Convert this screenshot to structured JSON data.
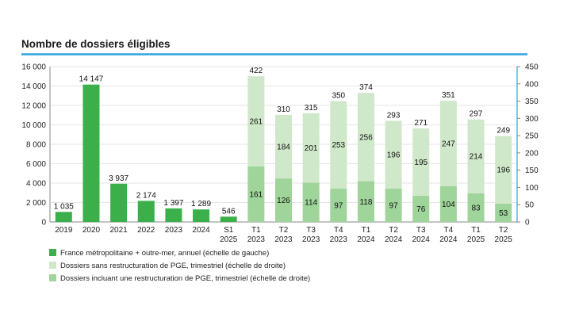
{
  "chart_data": {
    "type": "bar",
    "title": "Nombre de dossiers éligibles",
    "colors": {
      "annual": "#3bb04a",
      "sans_pge": "#cfe8c9",
      "incl_pge": "#9fd49a",
      "title_rule": "#2ea3e0",
      "grid": "#e6e6e6",
      "axis": "#888888"
    },
    "left_axis": {
      "ylim": [
        0,
        16000
      ],
      "ticks": [
        "0",
        "2 000",
        "4 000",
        "6 000",
        "8 000",
        "10 000",
        "12 000",
        "14 000",
        "16 000"
      ]
    },
    "right_axis": {
      "ylim": [
        0,
        450
      ],
      "ticks": [
        "0",
        "50",
        "100",
        "150",
        "200",
        "250",
        "300",
        "350",
        "400",
        "450"
      ]
    },
    "annual": {
      "categories": [
        [
          "2019"
        ],
        [
          "2020"
        ],
        [
          "2021"
        ],
        [
          "2022"
        ],
        [
          "2023"
        ],
        [
          "2024"
        ],
        [
          "S1",
          "2025"
        ]
      ],
      "values": [
        1035,
        14147,
        3937,
        2174,
        1397,
        1289,
        546
      ],
      "labels": [
        "1 035",
        "14 147",
        "3 937",
        "2 174",
        "1 397",
        "1 289",
        "546"
      ]
    },
    "quarterly": {
      "categories": [
        [
          "T1",
          "2023"
        ],
        [
          "T2",
          "2023"
        ],
        [
          "T3",
          "2023"
        ],
        [
          "T4",
          "2023"
        ],
        [
          "T1",
          "2024"
        ],
        [
          "T2",
          "2024"
        ],
        [
          "T3",
          "2024"
        ],
        [
          "T4",
          "2024"
        ],
        [
          "T1",
          "2025"
        ],
        [
          "T2",
          "2025"
        ]
      ],
      "incl_pge": [
        161,
        126,
        114,
        97,
        118,
        97,
        76,
        104,
        83,
        53
      ],
      "sans_pge": [
        261,
        184,
        201,
        253,
        256,
        196,
        195,
        247,
        214,
        196
      ],
      "totals": [
        422,
        310,
        315,
        350,
        374,
        293,
        271,
        351,
        297,
        249
      ]
    },
    "legend": [
      {
        "key": "annual",
        "label": "France métropolitaine + outre-mer, annuel (échelle de gauche)"
      },
      {
        "key": "sans_pge",
        "label": "Dossiers sans restructuration de PGE, trimestriel (échelle de droite)"
      },
      {
        "key": "incl_pge",
        "label": "Dossiers incluant une restructuration de PGE, trimestriel (échelle de droite)"
      }
    ]
  }
}
